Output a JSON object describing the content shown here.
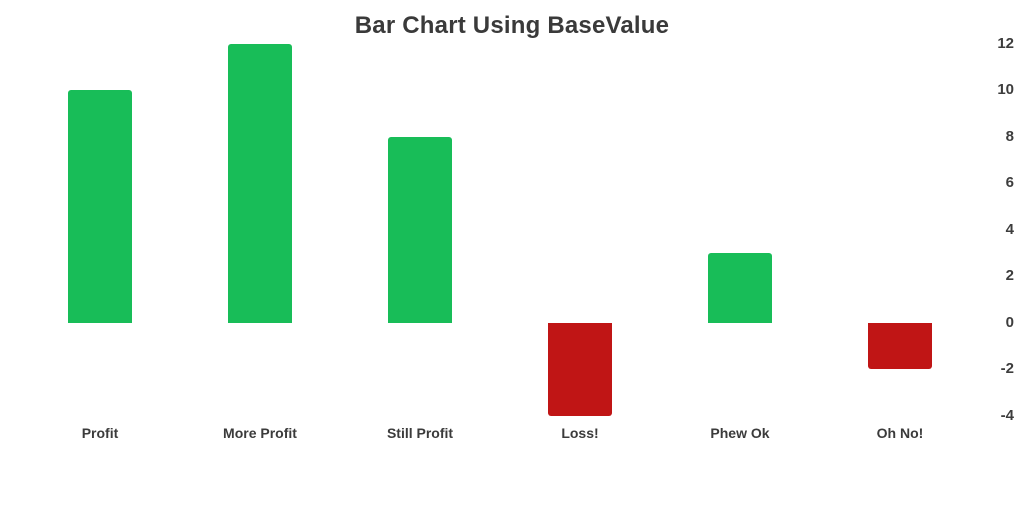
{
  "chart_data": {
    "type": "bar",
    "title": "Bar Chart Using BaseValue",
    "categories": [
      "Profit",
      "More Profit",
      "Still Profit",
      "Loss!",
      "Phew Ok",
      "Oh No!"
    ],
    "values": [
      10,
      12,
      8,
      -4,
      3,
      -2
    ],
    "base_value": 0,
    "y_ticks": [
      -4,
      -2,
      0,
      2,
      4,
      6,
      8,
      10,
      12
    ],
    "ylim": [
      -4,
      12
    ],
    "y_axis_position": "right",
    "xlabel": "",
    "ylabel": "",
    "grid": false,
    "legend": false,
    "positive_color": "#18bd58",
    "negative_color": "#c01515"
  }
}
